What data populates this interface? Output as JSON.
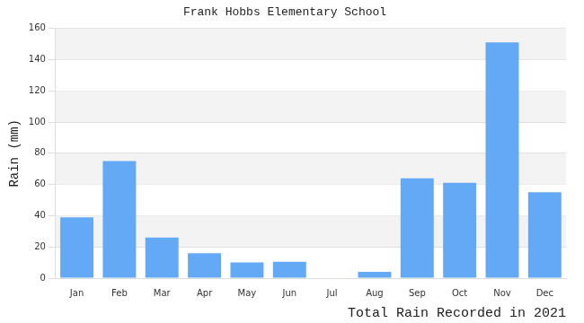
{
  "chart_data": {
    "type": "bar",
    "title": "Frank Hobbs Elementary School",
    "y_label": "Rain (mm)",
    "x_label": "Total Rain Recorded in 2021",
    "categories": [
      "Jan",
      "Feb",
      "Mar",
      "Apr",
      "May",
      "Jun",
      "Jul",
      "Aug",
      "Sep",
      "Oct",
      "Nov",
      "Dec"
    ],
    "values": [
      39,
      75,
      26,
      16,
      10,
      10.5,
      0,
      4,
      64,
      61,
      151,
      55
    ],
    "color": "#63a9f5",
    "ylim": [
      0,
      160
    ],
    "yticks": [
      0,
      20,
      40,
      60,
      80,
      100,
      120,
      140,
      160
    ],
    "grid": true
  }
}
